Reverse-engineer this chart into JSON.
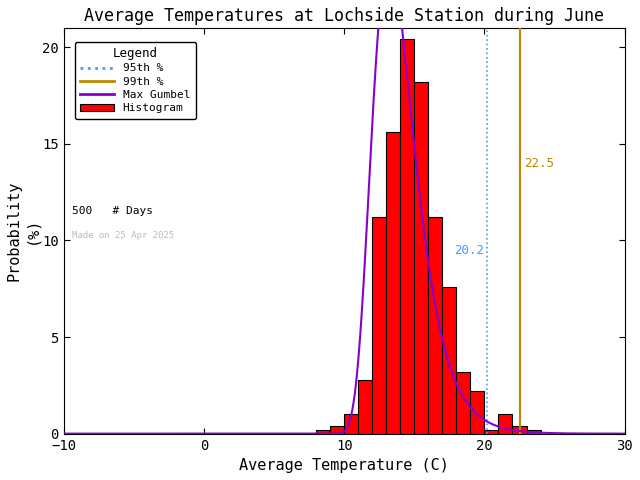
{
  "title": "Average Temperatures at Lochside Station during June",
  "xlabel": "Average Temperature (C)",
  "ylabel": "Probability\n(%)",
  "xlim": [
    -10,
    30
  ],
  "ylim": [
    0,
    21
  ],
  "yticks": [
    0,
    5,
    10,
    15,
    20
  ],
  "xticks": [
    -10,
    0,
    10,
    20,
    30
  ],
  "bar_edges": [
    7,
    8,
    9,
    10,
    11,
    12,
    13,
    14,
    15,
    16,
    17,
    18,
    19,
    20,
    21,
    22,
    23,
    24,
    25,
    26,
    27,
    28,
    29,
    30
  ],
  "bar_heights": [
    0.0,
    0.2,
    0.4,
    1.0,
    2.8,
    11.2,
    15.6,
    20.4,
    18.2,
    11.2,
    7.6,
    3.2,
    2.2,
    0.2,
    1.0,
    0.4,
    0.2,
    0.0,
    0.0,
    0.0,
    0.0,
    0.0,
    0.0
  ],
  "bar_color": "#ff0000",
  "bar_edgecolor": "#000000",
  "gumbel_mu": 13.2,
  "gumbel_beta": 1.5,
  "pct95": 20.2,
  "pct99": 22.5,
  "pct95_color": "#4499ff",
  "pct99_color": "#bb8800",
  "gumbel_color": "#8800cc",
  "n_days": 500,
  "watermark": "Made on 25 Apr 2025",
  "watermark_color": "#bbbbbb",
  "background_color": "#ffffff",
  "title_fontsize": 12,
  "axis_fontsize": 11,
  "legend_title": "Legend"
}
